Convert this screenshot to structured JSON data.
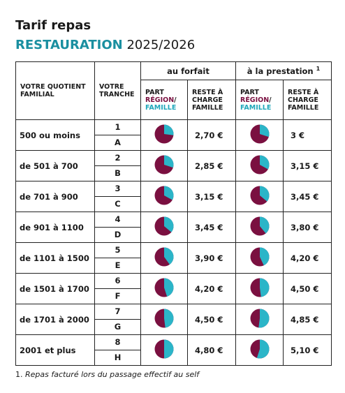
{
  "header": {
    "title": "Tarif repas",
    "subtitle_highlight": "RESTAURATION",
    "subtitle_year": "2025/2026"
  },
  "table": {
    "columns": {
      "quotient": "VOTRE QUOTIENT FAMILIAL",
      "tranche": "VOTRE TRANCHE",
      "forfait": "au forfait",
      "prestation": "à la prestation",
      "prestation_note": "1",
      "part": [
        "PART",
        "RÉGION",
        "/",
        "FAMILLE"
      ],
      "reste": "RESTE À CHARGE FAMILLE"
    },
    "rows": [
      {
        "quotient": "500 ou moins",
        "tranches": [
          "1",
          "A"
        ],
        "forfait_famille_share": 27,
        "forfait_reste": "2,70 €",
        "prestation_famille_share": 30,
        "prestation_reste": "3 €"
      },
      {
        "quotient": "de 501 à 700",
        "tranches": [
          "2",
          "B"
        ],
        "forfait_famille_share": 30,
        "forfait_reste": "2,85 €",
        "prestation_famille_share": 33,
        "prestation_reste": "3,15 €"
      },
      {
        "quotient": "de 701 à 900",
        "tranches": [
          "3",
          "C"
        ],
        "forfait_famille_share": 33,
        "forfait_reste": "3,15 €",
        "prestation_famille_share": 36,
        "prestation_reste": "3,45 €"
      },
      {
        "quotient": "de 901 à 1100",
        "tranches": [
          "4",
          "D"
        ],
        "forfait_famille_share": 36,
        "forfait_reste": "3,45 €",
        "prestation_famille_share": 39,
        "prestation_reste": "3,80 €"
      },
      {
        "quotient": "de 1101 à 1500",
        "tranches": [
          "5",
          "E"
        ],
        "forfait_famille_share": 40,
        "forfait_reste": "3,90 €",
        "prestation_famille_share": 43,
        "prestation_reste": "4,20 €"
      },
      {
        "quotient": "de 1501 à 1700",
        "tranches": [
          "6",
          "F"
        ],
        "forfait_famille_share": 45,
        "forfait_reste": "4,20 €",
        "prestation_famille_share": 48,
        "prestation_reste": "4,50 €"
      },
      {
        "quotient": "de 1701 à 2000",
        "tranches": [
          "7",
          "G"
        ],
        "forfait_famille_share": 48,
        "forfait_reste": "4,50 €",
        "prestation_famille_share": 52,
        "prestation_reste": "4,85 €"
      },
      {
        "quotient": "2001 et plus",
        "tranches": [
          "8",
          "H"
        ],
        "forfait_famille_share": 50,
        "forfait_reste": "4,80 €",
        "prestation_famille_share": 55,
        "prestation_reste": "5,10 €"
      }
    ]
  },
  "footnote": {
    "number": "1.",
    "text": "Repas facturé lors du passage effectif au self"
  }
}
